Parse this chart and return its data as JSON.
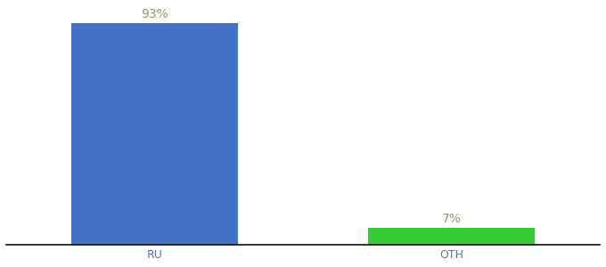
{
  "categories": [
    "RU",
    "OTH"
  ],
  "values": [
    93,
    7
  ],
  "bar_colors": [
    "#4472c4",
    "#33cc33"
  ],
  "labels": [
    "93%",
    "7%"
  ],
  "background_color": "#ffffff",
  "ylim": [
    0,
    100
  ],
  "bar_positions": [
    0.25,
    0.75
  ],
  "bar_width": 0.28,
  "label_fontsize": 10,
  "tick_fontsize": 9,
  "label_color": "#999977"
}
